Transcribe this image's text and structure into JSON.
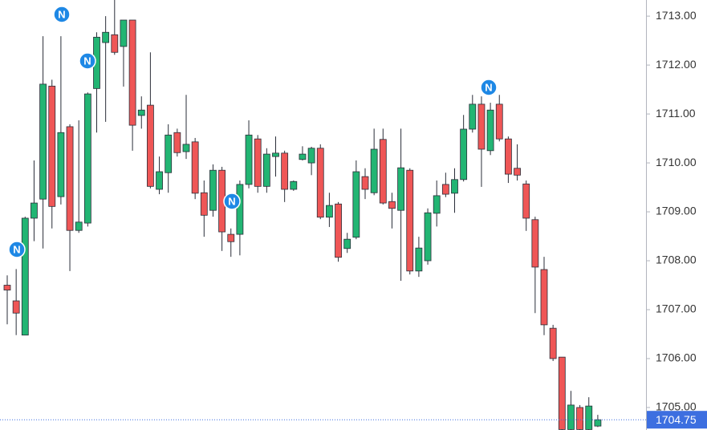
{
  "chart_data": {
    "type": "candlestick",
    "open": [
      1707.5,
      1707.18,
      1706.48,
      1708.87,
      1709.26,
      1711.57,
      1709.31,
      1710.74,
      1708.62,
      1708.77,
      1711.52,
      1712.46,
      1712.62,
      1712.38,
      1712.92,
      1710.97,
      1711.18,
      1709.46,
      1709.8,
      1710.62,
      1710.23,
      1710.43,
      1709.39,
      1709.03,
      1709.85,
      1708.54,
      1708.54,
      1709.56,
      1710.49,
      1709.52,
      1710.13,
      1710.2,
      1709.46,
      1710.07,
      1710.0,
      1710.3,
      1708.89,
      1709.16,
      1708.25,
      1708.48,
      1709.72,
      1709.39,
      1710.48,
      1709.21,
      1709.03,
      1709.85,
      1707.79,
      1708.0,
      1708.97,
      1709.56,
      1709.38,
      1709.66,
      1710.69,
      1711.2,
      1710.25,
      1711.2,
      1710.49,
      1709.89,
      1709.57,
      1708.84,
      1707.82,
      1706.62,
      1706.03,
      1704.55,
      1705.0,
      1704.55,
      1704.62
    ],
    "high": [
      1707.7,
      1707.83,
      1708.9,
      1710.05,
      1712.59,
      1711.7,
      1712.59,
      1710.79,
      1710.87,
      1711.44,
      1712.67,
      1713.0,
      1713.35,
      1712.92,
      1712.92,
      1711.36,
      1712.26,
      1710.13,
      1710.79,
      1710.7,
      1711.39,
      1710.51,
      1709.64,
      1709.97,
      1709.92,
      1708.66,
      1709.64,
      1710.87,
      1710.57,
      1710.3,
      1710.54,
      1710.25,
      1709.64,
      1710.34,
      1710.33,
      1710.38,
      1709.39,
      1709.2,
      1708.57,
      1710.05,
      1709.89,
      1710.7,
      1710.7,
      1709.39,
      1710.7,
      1709.89,
      1708.49,
      1709.07,
      1709.64,
      1709.8,
      1709.89,
      1710.98,
      1711.39,
      1711.36,
      1711.23,
      1711.39,
      1710.54,
      1710.38,
      1709.64,
      1708.9,
      1708.08,
      1706.69,
      1706.03,
      1705.34,
      1705.05,
      1705.21,
      1704.85
    ],
    "low": [
      1706.7,
      1706.48,
      1706.48,
      1708.4,
      1708.25,
      1708.66,
      1709.15,
      1707.79,
      1708.57,
      1708.7,
      1710.62,
      1710.84,
      1712.21,
      1711.56,
      1710.25,
      1710.7,
      1709.48,
      1709.36,
      1709.39,
      1710.13,
      1710.08,
      1709.26,
      1708.49,
      1708.9,
      1708.2,
      1708.08,
      1708.11,
      1709.48,
      1709.39,
      1709.39,
      1709.72,
      1709.2,
      1709.43,
      1710.05,
      1709.75,
      1708.85,
      1708.69,
      1707.98,
      1708.16,
      1708.44,
      1709.26,
      1709.34,
      1709.15,
      1708.66,
      1707.59,
      1707.72,
      1707.67,
      1707.92,
      1708.7,
      1709.3,
      1708.98,
      1709.62,
      1710.62,
      1709.51,
      1710.16,
      1710.44,
      1709.59,
      1709.64,
      1708.61,
      1706.93,
      1706.48,
      1705.95,
      1704.5,
      1704.5,
      1704.5,
      1704.5,
      1704.6
    ],
    "close": [
      1707.4,
      1706.93,
      1708.87,
      1709.18,
      1711.61,
      1709.11,
      1710.62,
      1708.62,
      1708.79,
      1711.41,
      1712.57,
      1712.67,
      1712.26,
      1712.92,
      1710.77,
      1711.08,
      1709.52,
      1709.82,
      1710.57,
      1710.21,
      1710.38,
      1709.38,
      1708.93,
      1709.85,
      1708.59,
      1708.39,
      1709.56,
      1710.57,
      1709.52,
      1710.18,
      1710.2,
      1709.46,
      1709.62,
      1710.18,
      1710.3,
      1708.89,
      1709.13,
      1708.07,
      1708.44,
      1709.82,
      1709.46,
      1710.28,
      1709.18,
      1709.07,
      1709.9,
      1707.79,
      1708.26,
      1708.98,
      1709.33,
      1709.36,
      1709.66,
      1710.69,
      1711.2,
      1710.28,
      1711.08,
      1710.49,
      1709.77,
      1709.75,
      1708.87,
      1707.87,
      1706.69,
      1706.0,
      1704.55,
      1705.05,
      1704.55,
      1705.03,
      1704.75
    ],
    "up_color": "#22b573",
    "down_color": "#ef5656",
    "ylim": [
      1704.54,
      1713.33
    ],
    "yticks": [
      {
        "value": 1705,
        "label": "1705.00"
      },
      {
        "value": 1706,
        "label": "1706.00"
      },
      {
        "value": 1707,
        "label": "1707.00"
      },
      {
        "value": 1708,
        "label": "1708.00"
      },
      {
        "value": 1709,
        "label": "1709.00"
      },
      {
        "value": 1710,
        "label": "1710.00"
      },
      {
        "value": 1711,
        "label": "1711.00"
      },
      {
        "value": 1712,
        "label": "1712.00"
      },
      {
        "value": 1713,
        "label": "1713.00"
      }
    ],
    "current_price": {
      "value": 1704.75,
      "label": "1704.75"
    },
    "markers": [
      "N",
      "N",
      "N",
      "N",
      "N"
    ]
  }
}
